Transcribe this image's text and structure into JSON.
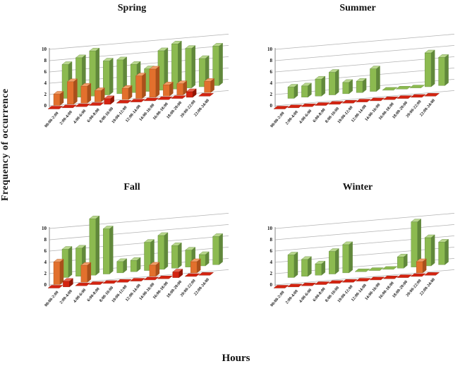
{
  "figure": {
    "ylabel": "Frequency of occurrence",
    "xlabel": "Hours",
    "grid_color": "#b3b3b3",
    "axis_color": "#8a8a8a"
  },
  "chart_data": [
    {
      "type": "bar",
      "title": "Spring",
      "categories": [
        "00:00-2:00",
        "2:00-4:00",
        "4:00-6:00",
        "6:00-8:00",
        "8:00-10:00",
        "10:00-12:00",
        "12:00-14:00",
        "14:00-16:00",
        "16:00-18:00",
        "18:00-20:00",
        "20:00-22:00",
        "22:00-24:00"
      ],
      "ylim": [
        0,
        10
      ],
      "yticks": [
        0,
        2,
        4,
        6,
        8,
        10
      ],
      "legend": "none",
      "grid": true,
      "series": [
        {
          "name": "green-series",
          "color": "#8cba50",
          "top": "#b9d78d",
          "side": "#61883b",
          "depth": 1,
          "zero_dash": true,
          "values": [
            6,
            7,
            8,
            6,
            6,
            5,
            4,
            7,
            8,
            7,
            5,
            7
          ]
        },
        {
          "name": "orange-series",
          "color": "#e2702d",
          "top": "#f09e68",
          "side": "#a9501b",
          "depth": 0,
          "zero_dash": false,
          "values": [
            2,
            4,
            3,
            2,
            0,
            2,
            4,
            5,
            2,
            2,
            0,
            2
          ]
        },
        {
          "name": "red-series",
          "color": "#d42310",
          "top": "#e86450",
          "side": "#921505",
          "depth": -0.5,
          "zero_dash": true,
          "values": [
            0,
            0,
            0,
            0,
            1,
            0,
            0,
            0,
            0,
            0,
            1,
            0
          ]
        }
      ]
    },
    {
      "type": "bar",
      "title": "Summer",
      "categories": [
        "00:00-2:00",
        "2:00-4:00",
        "4:00-6:00",
        "6:00-8:00",
        "8:00-10:00",
        "10:00-12:00",
        "12:00-14:00",
        "14:00-16:00",
        "16:00-18:00",
        "18:00-20:00",
        "20:00-22:00",
        "22:00-24:00"
      ],
      "ylim": [
        0,
        10
      ],
      "yticks": [
        0,
        2,
        4,
        6,
        8,
        10
      ],
      "legend": "none",
      "grid": true,
      "series": [
        {
          "name": "green-series",
          "color": "#8cba50",
          "top": "#b9d78d",
          "side": "#61883b",
          "depth": 1,
          "zero_dash": true,
          "values": [
            2,
            2,
            3,
            4,
            2,
            2,
            4,
            0,
            0,
            0,
            6,
            5
          ]
        },
        {
          "name": "orange-series",
          "color": "#e2702d",
          "top": "#f09e68",
          "side": "#a9501b",
          "depth": 0,
          "zero_dash": false,
          "values": [
            0,
            0,
            0,
            0,
            0,
            0,
            0,
            0,
            0,
            0,
            0,
            0
          ]
        },
        {
          "name": "red-series",
          "color": "#d42310",
          "top": "#e86450",
          "side": "#921505",
          "depth": -0.5,
          "zero_dash": true,
          "values": [
            0,
            0,
            0,
            0,
            0,
            0,
            0,
            0,
            0,
            0,
            0,
            0
          ]
        }
      ]
    },
    {
      "type": "bar",
      "title": "Fall",
      "categories": [
        "00:00-2:00",
        "2:00-4:00",
        "4:00-6:00",
        "6:00-8:00",
        "8:00-10:00",
        "10:00-12:00",
        "12:00-14:00",
        "14:00-16:00",
        "16:00-18:00",
        "18:00-20:00",
        "20:00-22:00",
        "22:00-24:00"
      ],
      "ylim": [
        0,
        10
      ],
      "yticks": [
        0,
        2,
        4,
        6,
        8,
        10
      ],
      "legend": "none",
      "grid": true,
      "series": [
        {
          "name": "green-series",
          "color": "#8cba50",
          "top": "#b9d78d",
          "side": "#61883b",
          "depth": 1,
          "zero_dash": true,
          "values": [
            5,
            5,
            10,
            8,
            2,
            2,
            5,
            6,
            4,
            3,
            2,
            5
          ]
        },
        {
          "name": "orange-series",
          "color": "#e2702d",
          "top": "#f09e68",
          "side": "#a9501b",
          "depth": 0,
          "zero_dash": false,
          "values": [
            4,
            0,
            3,
            0,
            0,
            0,
            0,
            2,
            0,
            0,
            2,
            0
          ]
        },
        {
          "name": "red-series",
          "color": "#d42310",
          "top": "#e86450",
          "side": "#921505",
          "depth": -0.5,
          "zero_dash": true,
          "values": [
            0,
            1,
            0,
            0,
            0,
            0,
            0,
            0,
            0,
            1,
            0,
            0
          ]
        }
      ]
    },
    {
      "type": "bar",
      "title": "Winter",
      "categories": [
        "00:00-2:00",
        "2:00-4:00",
        "4:00-6:00",
        "6:00-8:00",
        "8:00-10:00",
        "10:00-12:00",
        "12:00-14:00",
        "14:00-16:00",
        "16:00-18:00",
        "18:00-20:00",
        "20:00-22:00",
        "22:00-24:00"
      ],
      "ylim": [
        0,
        10
      ],
      "yticks": [
        0,
        2,
        4,
        6,
        8,
        10
      ],
      "legend": "none",
      "grid": true,
      "series": [
        {
          "name": "green-series",
          "color": "#8cba50",
          "top": "#b9d78d",
          "side": "#61883b",
          "depth": 1,
          "zero_dash": true,
          "values": [
            4,
            3,
            2,
            4,
            5,
            0,
            0,
            0,
            2,
            8,
            5,
            4
          ]
        },
        {
          "name": "orange-series",
          "color": "#e2702d",
          "top": "#f09e68",
          "side": "#a9501b",
          "depth": 0,
          "zero_dash": false,
          "values": [
            0,
            0,
            0,
            0,
            0,
            0,
            0,
            0,
            0,
            0,
            2,
            0
          ]
        },
        {
          "name": "red-series",
          "color": "#d42310",
          "top": "#e86450",
          "side": "#921505",
          "depth": -0.5,
          "zero_dash": true,
          "values": [
            0,
            0,
            0,
            0,
            0,
            0,
            0,
            0,
            0,
            0,
            0,
            0
          ]
        }
      ]
    }
  ]
}
